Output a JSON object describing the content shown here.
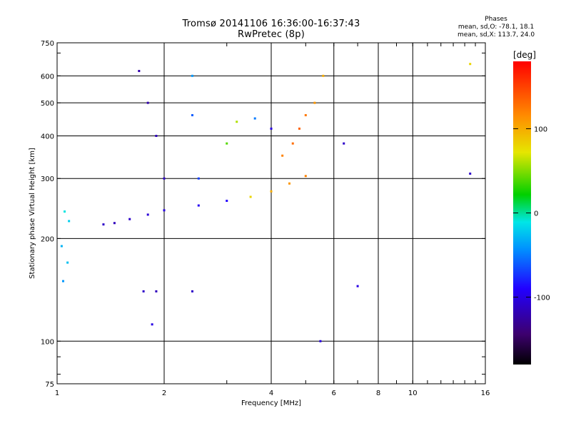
{
  "header": {
    "title": "Tromsø 20141106 16:36:00-16:37:43",
    "subtitle": "RwPretec (8p)"
  },
  "stats": {
    "heading": "Phases",
    "line_o": "mean, sd,O: -78.1, 18.1",
    "line_x": "mean, sd,X: 113.7, 24.0"
  },
  "chart_data": {
    "type": "scatter",
    "xlabel": "Frequency [MHz]",
    "ylabel": "Stationary phase Virtual Height [km]",
    "x_scale": "log",
    "y_scale": "log",
    "xlim": [
      1,
      16
    ],
    "ylim": [
      75,
      750
    ],
    "x_ticks": [
      1,
      2,
      4,
      6,
      8,
      10,
      16
    ],
    "x_gridlines": [
      2,
      4,
      6,
      8,
      10
    ],
    "y_ticks": [
      75,
      100,
      200,
      300,
      400,
      500,
      600,
      750
    ],
    "y_gridlines": [
      100,
      200,
      300,
      400,
      500,
      600
    ],
    "grid": true,
    "colorbar": {
      "label": "[deg]",
      "range": [
        -180,
        180
      ],
      "ticks": [
        100,
        0,
        -100
      ],
      "colormap": [
        "#000000",
        "#3d006e",
        "#2200ff",
        "#0090ff",
        "#00e6e6",
        "#00d000",
        "#e6e600",
        "#ff8c00",
        "#ff0000"
      ]
    },
    "series": [
      {
        "points": [
          [
            1.05,
            240,
            -10
          ],
          [
            1.08,
            225,
            -20
          ],
          [
            1.03,
            190,
            -30
          ],
          [
            1.07,
            170,
            -25
          ],
          [
            1.04,
            150,
            -40
          ]
        ]
      },
      {
        "points": [
          [
            1.35,
            220,
            -110
          ],
          [
            1.45,
            222,
            -115
          ],
          [
            1.6,
            228,
            -110
          ],
          [
            1.8,
            235,
            -105
          ],
          [
            2.0,
            242,
            -100
          ],
          [
            2.5,
            250,
            -95
          ],
          [
            3.0,
            258,
            -90
          ],
          [
            3.5,
            265,
            80
          ],
          [
            4.0,
            275,
            100
          ],
          [
            4.5,
            290,
            110
          ],
          [
            5.0,
            305,
            120
          ]
        ]
      },
      {
        "points": [
          [
            1.7,
            620,
            -120
          ],
          [
            1.8,
            500,
            -120
          ],
          [
            1.9,
            400,
            -115
          ],
          [
            2.0,
            300,
            -110
          ],
          [
            2.4,
            600,
            -40
          ],
          [
            2.4,
            460,
            -60
          ],
          [
            2.5,
            300,
            -70
          ],
          [
            3.0,
            380,
            40
          ],
          [
            3.2,
            440,
            60
          ],
          [
            3.6,
            450,
            -50
          ],
          [
            4.0,
            420,
            -100
          ]
        ]
      },
      {
        "points": [
          [
            4.3,
            350,
            120
          ],
          [
            4.6,
            380,
            130
          ],
          [
            4.8,
            420,
            135
          ],
          [
            5.0,
            460,
            125
          ],
          [
            5.3,
            500,
            110
          ],
          [
            5.6,
            600,
            100
          ]
        ]
      },
      {
        "points": [
          [
            1.75,
            140,
            -110
          ],
          [
            1.9,
            140,
            -115
          ],
          [
            2.4,
            140,
            -110
          ],
          [
            1.85,
            112,
            -100
          ],
          [
            5.5,
            100,
            -100
          ],
          [
            6.4,
            380,
            -110
          ],
          [
            7.0,
            145,
            -100
          ],
          [
            14.5,
            650,
            80
          ],
          [
            14.5,
            310,
            -110
          ]
        ]
      }
    ]
  }
}
